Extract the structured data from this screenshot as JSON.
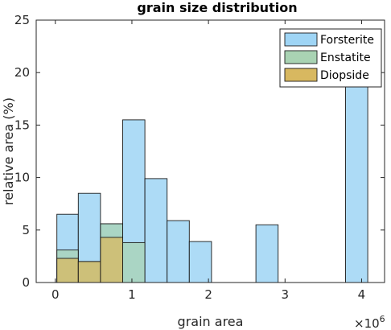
{
  "chart_data": {
    "type": "bar",
    "title": "grain size distribution",
    "xlabel": "grain area",
    "ylabel": "relative area (%)",
    "x_exponent_label": "×10",
    "x_exponent_power": "6",
    "xlim": [
      -0.25,
      4.3
    ],
    "ylim": [
      0,
      25
    ],
    "x_ticks": [
      0,
      1,
      2,
      3,
      4
    ],
    "x_tick_labels": [
      "0",
      "1",
      "2",
      "3",
      "4"
    ],
    "y_ticks": [
      0,
      5,
      10,
      15,
      20,
      25
    ],
    "y_tick_labels": [
      "0",
      "5",
      "10",
      "15",
      "20",
      "25"
    ],
    "legend_position": "top-right",
    "series": [
      {
        "name": "Forsterite",
        "color": "#9fd5f5",
        "bars": [
          {
            "x0": 0.02,
            "x1": 0.3,
            "value": 6.5
          },
          {
            "x0": 0.3,
            "x1": 0.59,
            "value": 8.5
          },
          {
            "x0": 0.59,
            "x1": 0.88,
            "value": 5.6
          },
          {
            "x0": 0.88,
            "x1": 1.17,
            "value": 15.5
          },
          {
            "x0": 1.17,
            "x1": 1.46,
            "value": 9.9
          },
          {
            "x0": 1.46,
            "x1": 1.75,
            "value": 5.9
          },
          {
            "x0": 1.75,
            "x1": 2.04,
            "value": 3.9
          },
          {
            "x0": 2.62,
            "x1": 2.91,
            "value": 5.5
          },
          {
            "x0": 3.79,
            "x1": 4.08,
            "value": 20.5
          }
        ]
      },
      {
        "name": "Enstatite",
        "color": "#a9d3b3",
        "bars": [
          {
            "x0": 0.02,
            "x1": 0.3,
            "value": 3.1
          },
          {
            "x0": 0.3,
            "x1": 0.59,
            "value": 2.0
          },
          {
            "x0": 0.59,
            "x1": 0.88,
            "value": 5.6
          },
          {
            "x0": 0.88,
            "x1": 1.17,
            "value": 3.8
          }
        ]
      },
      {
        "name": "Diopside",
        "color": "#d8b860",
        "bars": [
          {
            "x0": 0.02,
            "x1": 0.3,
            "value": 2.3
          },
          {
            "x0": 0.3,
            "x1": 0.59,
            "value": 2.0
          },
          {
            "x0": 0.59,
            "x1": 0.88,
            "value": 4.3
          }
        ]
      }
    ]
  }
}
